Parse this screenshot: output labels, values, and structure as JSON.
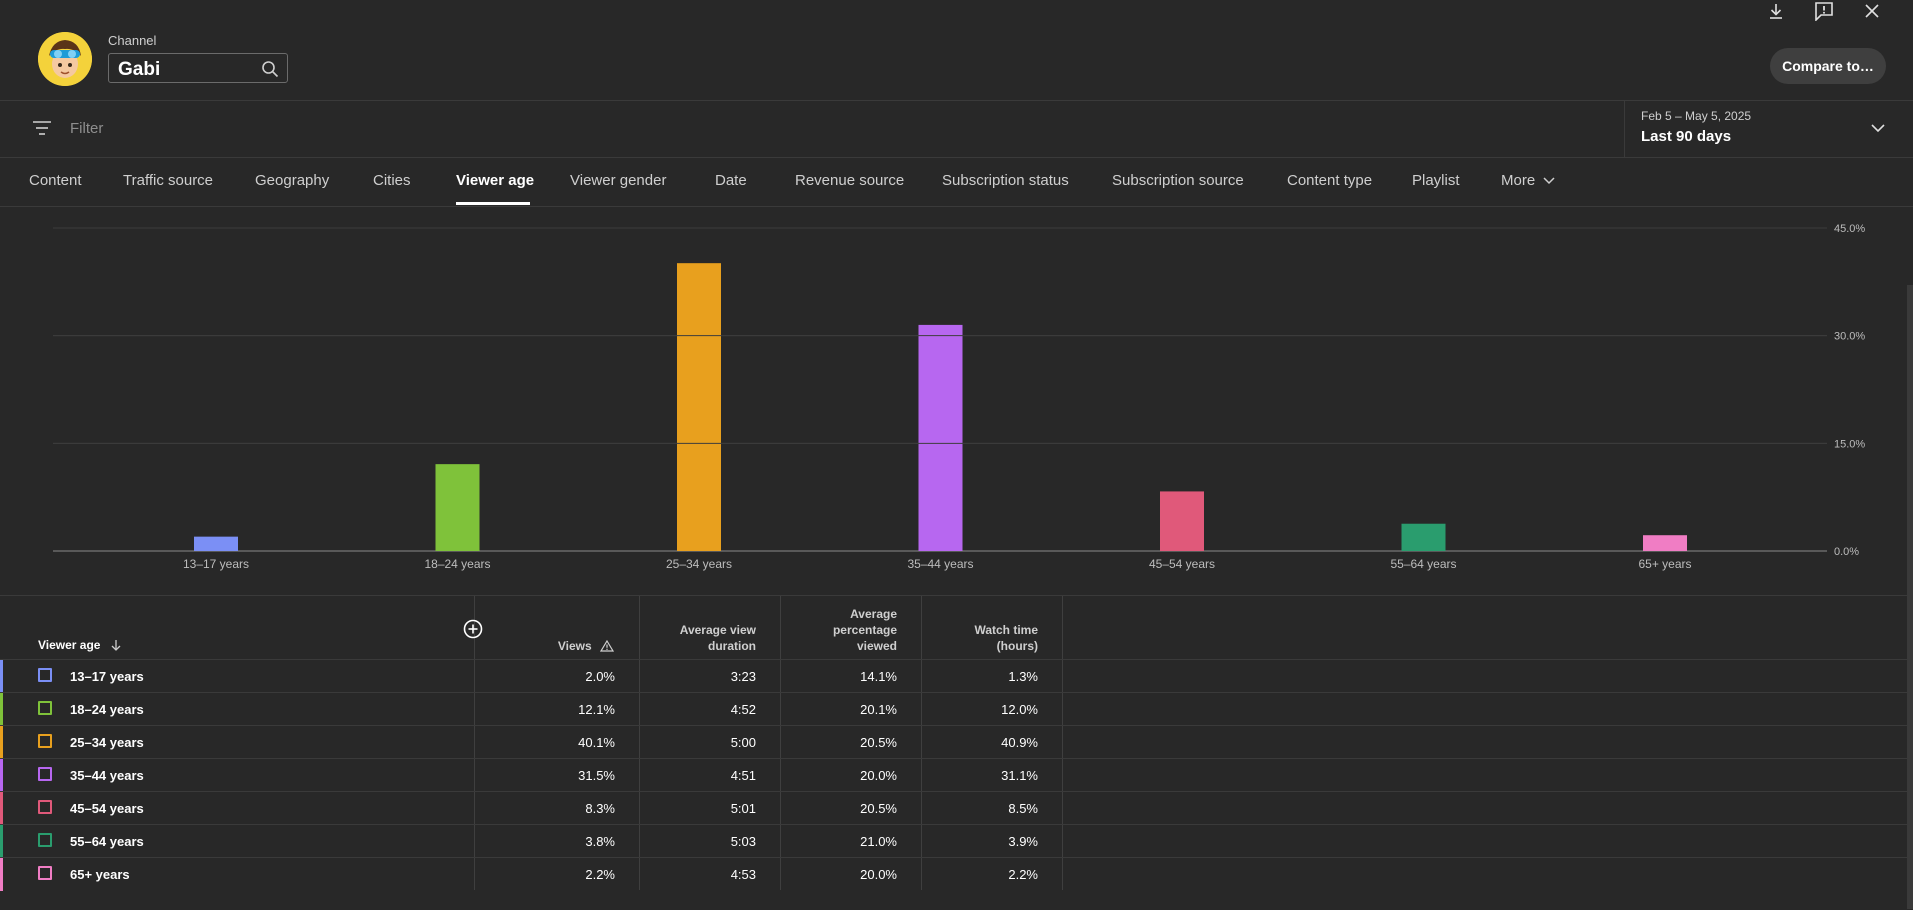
{
  "header": {
    "channel_label": "Channel",
    "channel_name": "Gabi",
    "compare_button": "Compare to…"
  },
  "filter": {
    "placeholder": "Filter",
    "date_range": "Feb 5 – May 5, 2025",
    "date_label": "Last 90 days"
  },
  "tabs": [
    {
      "label": "Content"
    },
    {
      "label": "Traffic source"
    },
    {
      "label": "Geography"
    },
    {
      "label": "Cities"
    },
    {
      "label": "Viewer age",
      "active": true
    },
    {
      "label": "Viewer gender"
    },
    {
      "label": "Date"
    },
    {
      "label": "Revenue source"
    },
    {
      "label": "Subscription status"
    },
    {
      "label": "Subscription source"
    },
    {
      "label": "Content type"
    },
    {
      "label": "Playlist"
    },
    {
      "label": "More"
    }
  ],
  "chart_data": {
    "type": "bar",
    "categories": [
      "13–17 years",
      "18–24 years",
      "25–34 years",
      "35–44 years",
      "45–54 years",
      "55–64 years",
      "65+ years"
    ],
    "values": [
      2.0,
      12.1,
      40.1,
      31.5,
      8.3,
      3.8,
      2.2
    ],
    "colors": [
      "#7b8ff5",
      "#7fc23a",
      "#e8a01e",
      "#b767f0",
      "#e0597a",
      "#2a9d6e",
      "#f07dc4"
    ],
    "y_ticks": [
      "45.0%",
      "30.0%",
      "15.0%",
      "0.0%"
    ],
    "ylim": [
      0,
      45
    ],
    "grid": true,
    "y_axis_side": "right"
  },
  "table": {
    "columns": {
      "age": "Viewer age",
      "views": "Views",
      "avd": [
        "Average view",
        "duration"
      ],
      "apv": [
        "Average",
        "percentage",
        "viewed"
      ],
      "wt": [
        "Watch time",
        "(hours)"
      ]
    },
    "rows": [
      {
        "label": "13–17 years",
        "views": "2.0%",
        "avd": "3:23",
        "apv": "14.1%",
        "wt": "1.3%",
        "color": "#7b8ff5"
      },
      {
        "label": "18–24 years",
        "views": "12.1%",
        "avd": "4:52",
        "apv": "20.1%",
        "wt": "12.0%",
        "color": "#7fc23a"
      },
      {
        "label": "25–34 years",
        "views": "40.1%",
        "avd": "5:00",
        "apv": "20.5%",
        "wt": "40.9%",
        "color": "#e8a01e"
      },
      {
        "label": "35–44 years",
        "views": "31.5%",
        "avd": "4:51",
        "apv": "20.0%",
        "wt": "31.1%",
        "color": "#b767f0"
      },
      {
        "label": "45–54 years",
        "views": "8.3%",
        "avd": "5:01",
        "apv": "20.5%",
        "wt": "8.5%",
        "color": "#e0597a"
      },
      {
        "label": "55–64 years",
        "views": "3.8%",
        "avd": "5:03",
        "apv": "21.0%",
        "wt": "3.9%",
        "color": "#2a9d6e"
      },
      {
        "label": "65+ years",
        "views": "2.2%",
        "avd": "4:53",
        "apv": "20.0%",
        "wt": "2.2%",
        "color": "#f07dc4"
      }
    ]
  }
}
